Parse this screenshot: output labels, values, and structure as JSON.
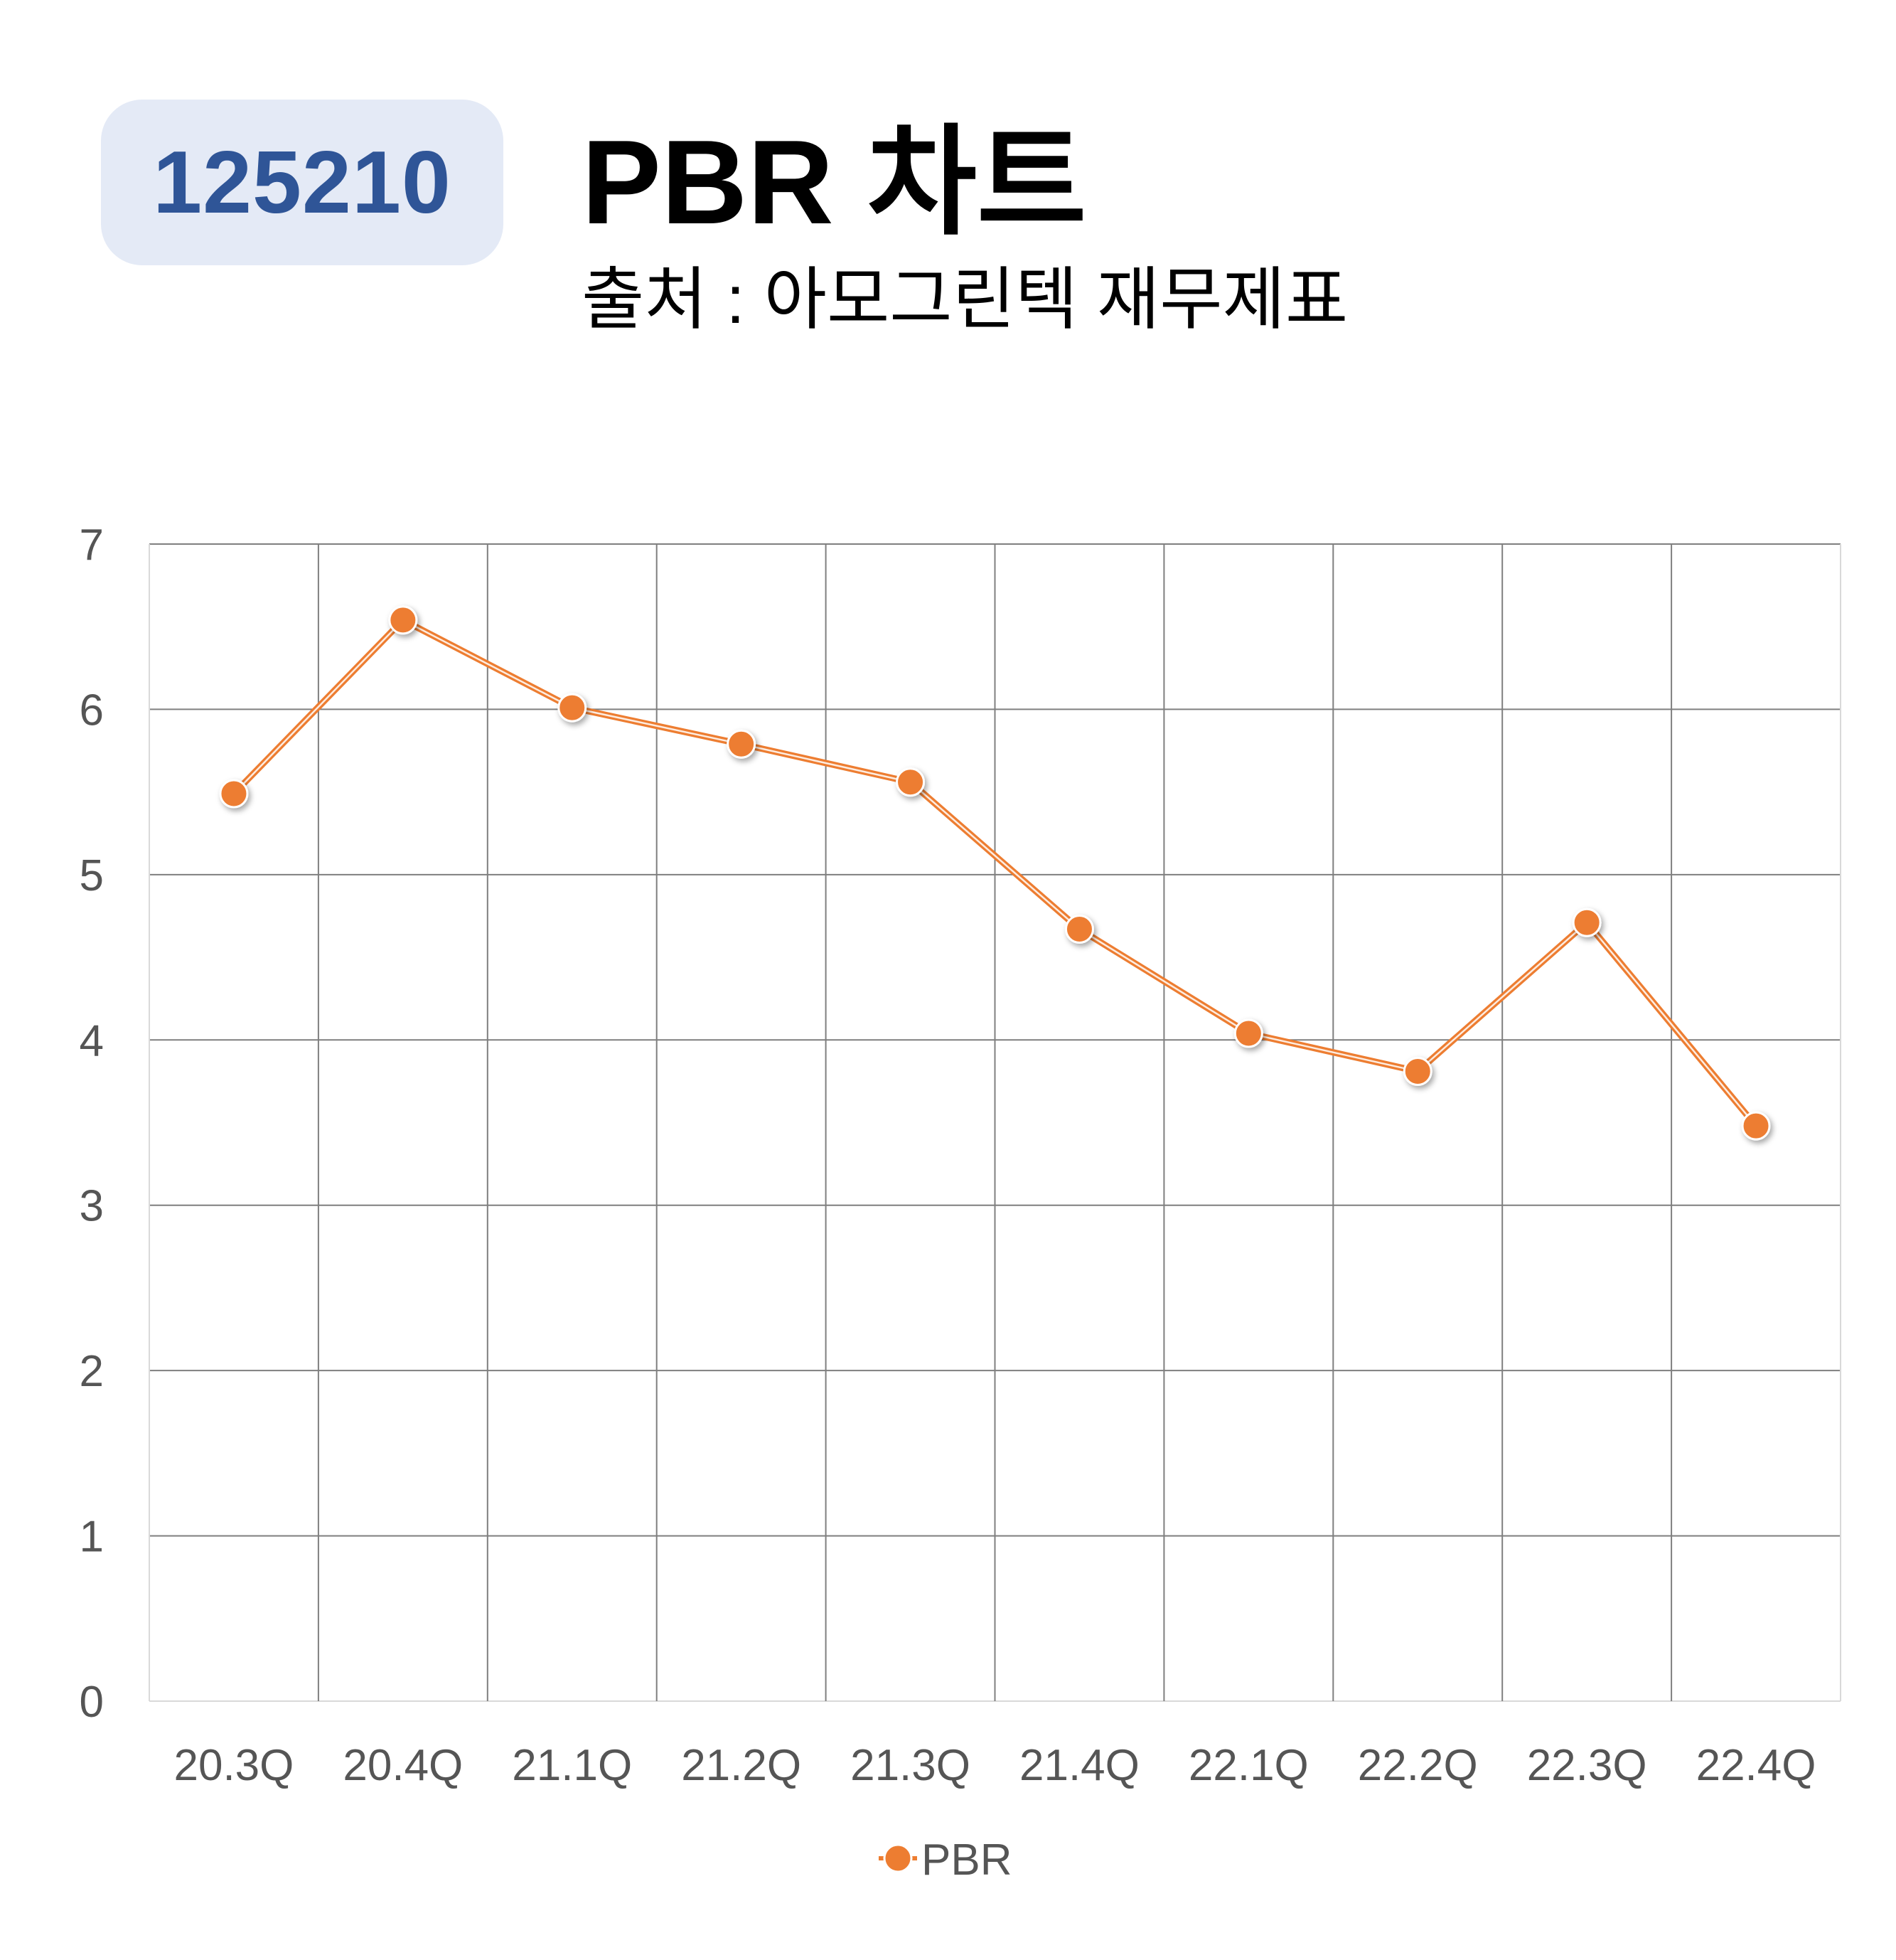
{
  "header": {
    "code": "125210",
    "title": "PBR 차트",
    "subtitle": "출처 : 아모그린텍 재무제표"
  },
  "chart_data": {
    "type": "line",
    "categories": [
      "20.3Q",
      "20.4Q",
      "21.1Q",
      "21.2Q",
      "21.3Q",
      "21.4Q",
      "22.1Q",
      "22.2Q",
      "22.3Q",
      "22.4Q"
    ],
    "series": [
      {
        "name": "PBR",
        "values": [
          5.49,
          6.54,
          6.01,
          5.79,
          5.56,
          4.67,
          4.04,
          3.81,
          4.71,
          3.48
        ],
        "color": "#ed7d31"
      }
    ],
    "yticks": [
      "0",
      "1",
      "2",
      "3",
      "4",
      "5",
      "6",
      "7"
    ],
    "ylim": [
      0,
      7
    ],
    "xlabel": "",
    "ylabel": "",
    "grid": true,
    "legend": "bottom-center"
  }
}
